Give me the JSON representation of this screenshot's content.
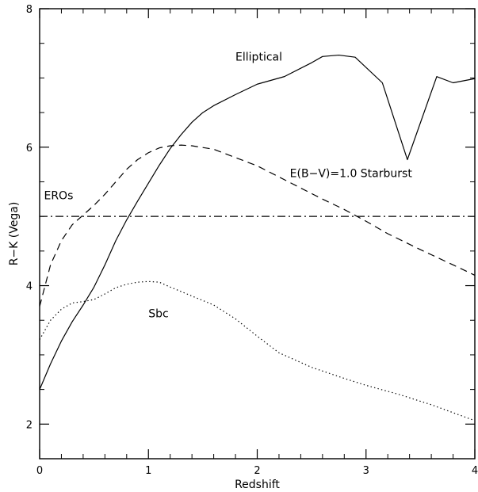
{
  "chart_data": {
    "type": "line",
    "title": "",
    "xlabel": "Redshift",
    "ylabel": "R−K (Vega)",
    "xlim": [
      0,
      4
    ],
    "ylim": [
      1.5,
      8
    ],
    "x_ticks": [
      {
        "value": 0,
        "label": "0"
      },
      {
        "value": 1,
        "label": "1"
      },
      {
        "value": 2,
        "label": "2"
      },
      {
        "value": 3,
        "label": "3"
      },
      {
        "value": 4,
        "label": "4"
      }
    ],
    "y_ticks": [
      {
        "value": 2,
        "label": "2"
      },
      {
        "value": 4,
        "label": "4"
      },
      {
        "value": 6,
        "label": "6"
      },
      {
        "value": 8,
        "label": "8"
      }
    ],
    "x_minor_step": 0.2,
    "y_minor_step": 0.5,
    "grid": false,
    "series": [
      {
        "name": "Elliptical",
        "line_style": "solid",
        "x": [
          0,
          0.1,
          0.2,
          0.3,
          0.4,
          0.5,
          0.6,
          0.7,
          0.8,
          0.9,
          1.0,
          1.1,
          1.2,
          1.3,
          1.4,
          1.5,
          1.6,
          1.8,
          2.0,
          2.25,
          2.5,
          2.6,
          2.75,
          2.9,
          3.15,
          3.38,
          3.65,
          3.8,
          4.0
        ],
        "y": [
          2.5,
          2.87,
          3.2,
          3.48,
          3.72,
          3.98,
          4.3,
          4.65,
          4.95,
          5.22,
          5.48,
          5.74,
          5.98,
          6.18,
          6.36,
          6.5,
          6.6,
          6.76,
          6.91,
          7.02,
          7.22,
          7.31,
          7.33,
          7.3,
          6.93,
          5.82,
          7.02,
          6.93,
          6.99
        ]
      },
      {
        "name": "E(B−V)=1.0 Starburst",
        "line_style": "dashed",
        "x": [
          0,
          0.1,
          0.2,
          0.3,
          0.4,
          0.5,
          0.6,
          0.7,
          0.8,
          0.9,
          1.0,
          1.1,
          1.2,
          1.3,
          1.4,
          1.6,
          1.8,
          2.0,
          2.2,
          2.4,
          2.6,
          2.8,
          3.0,
          3.2,
          3.5,
          3.8,
          4.0
        ],
        "y": [
          3.7,
          4.3,
          4.65,
          4.88,
          5.02,
          5.16,
          5.32,
          5.5,
          5.68,
          5.82,
          5.92,
          5.99,
          6.02,
          6.03,
          6.02,
          5.97,
          5.85,
          5.73,
          5.57,
          5.41,
          5.25,
          5.1,
          4.93,
          4.75,
          4.52,
          4.3,
          4.15
        ]
      },
      {
        "name": "Sbc",
        "line_style": "dotted",
        "x": [
          0,
          0.1,
          0.2,
          0.3,
          0.4,
          0.5,
          0.6,
          0.7,
          0.8,
          0.9,
          1.0,
          1.1,
          1.2,
          1.4,
          1.6,
          1.8,
          2.0,
          2.2,
          2.5,
          2.8,
          3.0,
          3.3,
          3.6,
          4.0
        ],
        "y": [
          3.22,
          3.5,
          3.66,
          3.75,
          3.77,
          3.8,
          3.88,
          3.97,
          4.02,
          4.05,
          4.06,
          4.05,
          3.98,
          3.85,
          3.72,
          3.52,
          3.27,
          3.03,
          2.82,
          2.66,
          2.56,
          2.43,
          2.28,
          2.05
        ]
      },
      {
        "name": "EROs",
        "line_style": "dashdot",
        "x": [
          0,
          4
        ],
        "y": [
          5.0,
          5.0
        ]
      }
    ],
    "annotations": [
      {
        "text": "Elliptical",
        "x": 1.8,
        "y": 7.25
      },
      {
        "text": "E(B−V)=1.0 Starburst",
        "x": 2.3,
        "y": 5.57
      },
      {
        "text": "EROs",
        "x": 0.04,
        "y": 5.25
      },
      {
        "text": "Sbc",
        "x": 1.0,
        "y": 3.54
      }
    ]
  }
}
